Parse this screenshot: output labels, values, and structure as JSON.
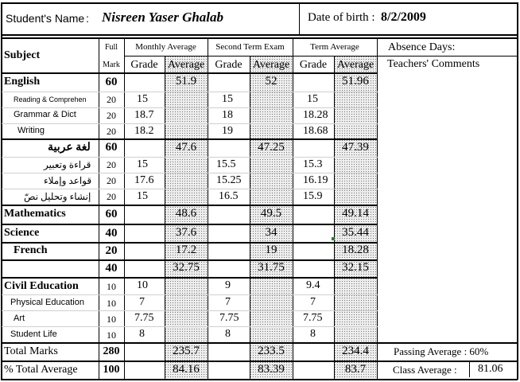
{
  "header": {
    "student_label": "Student's Name",
    "colon": ":",
    "student_name": "Nisreen Yaser Ghalab",
    "dob_label": "Date of birth :",
    "dob_value": "8/2/2009"
  },
  "columns": {
    "subject": "Subject",
    "full": "Full",
    "mark": "Mark",
    "monthly": "Monthly Average",
    "second_term": "Second Term Exam",
    "term_average": "Term Average",
    "grade": "Grade",
    "average": "Average",
    "absence": "Absence Days:",
    "comments": "Teachers' Comments"
  },
  "rows": [
    {
      "label": "English",
      "full": "60",
      "m_avg": "51.9",
      "s_avg": "52",
      "t_avg": "51.96"
    },
    {
      "label": "Reading  &  Comprehen",
      "full": "20",
      "m_grade": "15",
      "s_grade": "15",
      "t_grade": "15"
    },
    {
      "label": "Grammar & Dict",
      "full": "20",
      "m_grade": "18.7",
      "s_grade": "18",
      "t_grade": "18.28"
    },
    {
      "label": "Writing",
      "full": "20",
      "m_grade": "18.2",
      "s_grade": "19",
      "t_grade": "18.68"
    },
    {
      "label": "لغة عربية",
      "full": "60",
      "m_avg": "47.6",
      "s_avg": "47.25",
      "t_avg": "47.39"
    },
    {
      "label": "قراءة وتعبير",
      "full": "20",
      "m_grade": "15",
      "s_grade": "15.5",
      "t_grade": "15.3"
    },
    {
      "label": "قواعد وإملاء",
      "full": "20",
      "m_grade": "17.6",
      "s_grade": "15.25",
      "t_grade": "16.19"
    },
    {
      "label": "إنشاء وتحليل نصّ",
      "full": "20",
      "m_grade": "15",
      "s_grade": "16.5",
      "t_grade": "15.9"
    },
    {
      "label": "Mathematics",
      "full": "60",
      "m_avg": "48.6",
      "s_avg": "49.5",
      "t_avg": "49.14"
    },
    {
      "label": "Science",
      "full": "40",
      "m_avg": "37.6",
      "s_avg": "34",
      "t_avg": "35.44"
    },
    {
      "label": "French",
      "full": "20",
      "m_avg": "17.2",
      "s_avg": "19",
      "t_avg": "18.28"
    },
    {
      "label": "",
      "full": "40",
      "m_avg": "32.75",
      "s_avg": "31.75",
      "t_avg": "32.15"
    },
    {
      "label": "Civil Education",
      "full": "10",
      "m_grade": "10",
      "s_grade": "9",
      "t_grade": "9.4"
    },
    {
      "label": "Physical Education",
      "full": "10",
      "m_grade": "7",
      "s_grade": "7",
      "t_grade": "7"
    },
    {
      "label": "Art",
      "full": "10",
      "m_grade": "7.75",
      "s_grade": "7.75",
      "t_grade": "7.75"
    },
    {
      "label": "Student Life",
      "full": "10",
      "m_grade": "8",
      "s_grade": "8",
      "t_grade": "8"
    }
  ],
  "totals": {
    "total_label": "Total Marks",
    "total_full": "280",
    "total_m": "235.7",
    "total_s": "233.5",
    "total_t": "234.4",
    "passing": "Passing Average : 60%",
    "pct_label": "% Total Average",
    "pct_full": "100",
    "pct_m": "84.16",
    "pct_s": "83.39",
    "pct_t": "83.7",
    "class_avg_label": "Class Average :",
    "class_avg_value": "81.06"
  }
}
